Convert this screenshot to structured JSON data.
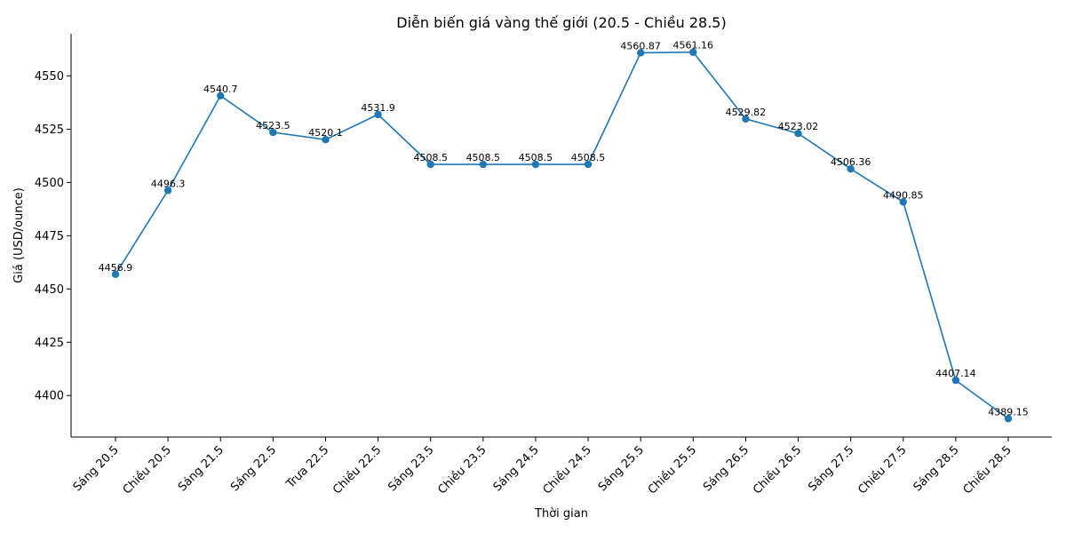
{
  "chart_data": {
    "type": "line",
    "title": "Diễn biến giá vàng thế giới (20.5 - Chiều 28.5)",
    "xlabel": "Thời gian",
    "ylabel": "Giá (USD/ounce)",
    "categories": [
      "Sáng 20.5",
      "Chiều 20.5",
      "Sáng 21.5",
      "Sáng 22.5",
      "Trưa 22.5",
      "Chiều 22.5",
      "Sáng 23.5",
      "Chiều 23.5",
      "Sáng 24.5",
      "Chiều 24.5",
      "Sáng 25.5",
      "Chiều 25.5",
      "Sáng 26.5",
      "Chiều 26.5",
      "Sáng 27.5",
      "Chiều 27.5",
      "Sáng 28.5",
      "Chiều 28.5"
    ],
    "series": [
      {
        "values": [
          4456.9,
          4496.3,
          4540.7,
          4523.5,
          4520.1,
          4531.9,
          4508.5,
          4508.5,
          4508.5,
          4508.5,
          4560.87,
          4561.16,
          4529.82,
          4523.02,
          4506.36,
          4490.85,
          4407.14,
          4389.15
        ],
        "data_labels": [
          "4456.9",
          "4496.3",
          "4540.7",
          "4523.5",
          "4520.1",
          "4531.9",
          "4508.5",
          "4508.5",
          "4508.5",
          "4508.5",
          "4560.87",
          "4561.16",
          "4529.82",
          "4523.02",
          "4506.36",
          "4490.85",
          "4407.14",
          "4389.15"
        ],
        "color": "#1f77b4"
      }
    ],
    "ylim": [
      4380.5,
      4569.8
    ],
    "yticks": [
      4400,
      4425,
      4450,
      4475,
      4500,
      4525,
      4550
    ],
    "ytick_labels": [
      "4400",
      "4425",
      "4450",
      "4475",
      "4500",
      "4525",
      "4550"
    ],
    "grid": false,
    "legend": "none",
    "markers": true
  }
}
